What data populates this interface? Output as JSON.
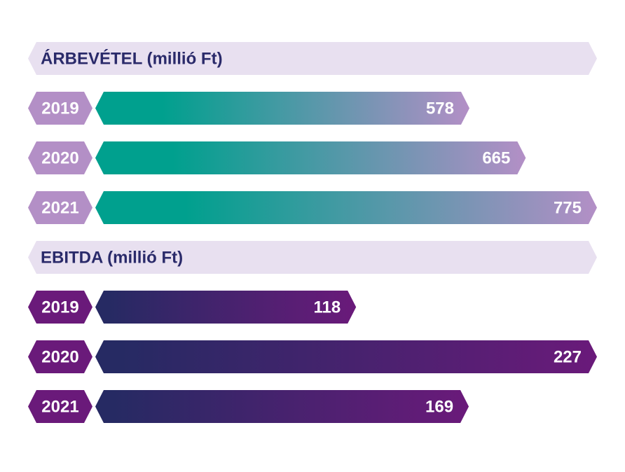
{
  "chart_data": [
    {
      "type": "bar",
      "title": "ÁRBEVÉTEL (millió Ft)",
      "categories": [
        "2019",
        "2020",
        "2021"
      ],
      "values": [
        578,
        665,
        775
      ],
      "xlim": [
        0,
        775
      ],
      "colors": {
        "header_bg": "#e8e0f0",
        "label_bg": "#b38fc6",
        "bar_start": "#00a08e",
        "bar_end": "#b38fc6"
      }
    },
    {
      "type": "bar",
      "title": "EBITDA (millió Ft)",
      "categories": [
        "2019",
        "2020",
        "2021"
      ],
      "values": [
        118,
        227,
        169
      ],
      "xlim": [
        0,
        227
      ],
      "colors": {
        "header_bg": "#e8e0f0",
        "label_bg": "#6a1a7a",
        "bar_start": "#262a63",
        "bar_end": "#6a1a7a"
      }
    }
  ]
}
